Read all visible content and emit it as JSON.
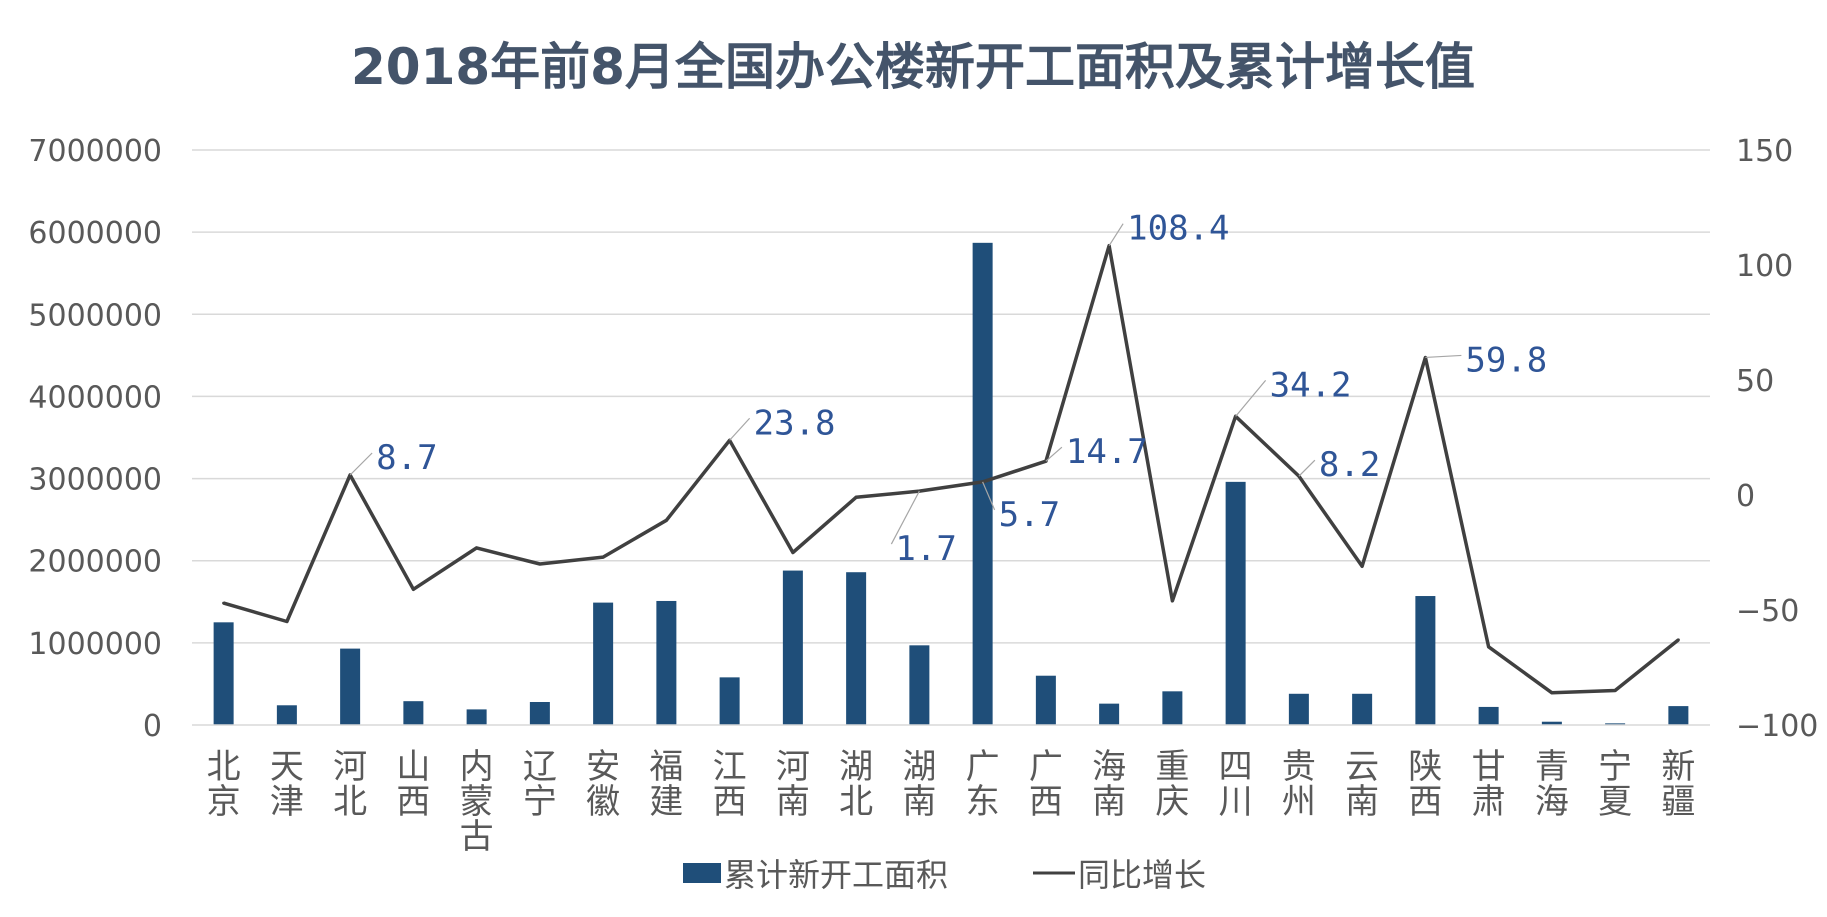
{
  "chart_data": {
    "type": "bar",
    "title": "2018年前8月全国办公楼新开工面积及累计增长值",
    "categories": [
      "北京",
      "天津",
      "河北",
      "山西",
      "内蒙古",
      "辽宁",
      "安徽",
      "福建",
      "江西",
      "河南",
      "湖北",
      "湖南",
      "广东",
      "广西",
      "海南",
      "重庆",
      "四川",
      "贵州",
      "云南",
      "陕西",
      "甘肃",
      "青海",
      "宁夏",
      "新疆"
    ],
    "series": [
      {
        "name": "累计新开工面积",
        "type": "bar",
        "axis": "left",
        "color": "#1F4E79",
        "values": [
          1250000,
          240000,
          930000,
          290000,
          190000,
          280000,
          1490000,
          1510000,
          580000,
          1880000,
          1860000,
          970000,
          5870000,
          600000,
          260000,
          410000,
          2960000,
          380000,
          380000,
          1570000,
          220000,
          40000,
          20000,
          230000
        ]
      },
      {
        "name": "同比增长",
        "type": "line",
        "axis": "right",
        "color": "#404040",
        "values": [
          -47,
          -55,
          8.7,
          -41,
          -23,
          -30,
          -27,
          -11,
          23.8,
          -25,
          -1,
          1.7,
          5.7,
          14.7,
          108.4,
          -46,
          34.2,
          8.2,
          -31,
          59.8,
          -66,
          -86,
          -85,
          -63
        ]
      }
    ],
    "data_labels": [
      {
        "index": 2,
        "text": "8.7"
      },
      {
        "index": 8,
        "text": "23.8"
      },
      {
        "index": 11,
        "text": "1.7"
      },
      {
        "index": 12,
        "text": "5.7"
      },
      {
        "index": 13,
        "text": "14.7"
      },
      {
        "index": 14,
        "text": "108.4"
      },
      {
        "index": 16,
        "text": "34.2"
      },
      {
        "index": 17,
        "text": "8.2"
      },
      {
        "index": 19,
        "text": "59.8"
      }
    ],
    "y_left": {
      "min": 0,
      "max": 7000000,
      "ticks": [
        "0",
        "1000000",
        "2000000",
        "3000000",
        "4000000",
        "5000000",
        "6000000",
        "7000000"
      ]
    },
    "y_right": {
      "min": -100,
      "max": 150,
      "ticks": [
        "−100",
        "−50",
        "0",
        "50",
        "100",
        "150"
      ]
    },
    "grid": true,
    "legend_position": "bottom"
  }
}
